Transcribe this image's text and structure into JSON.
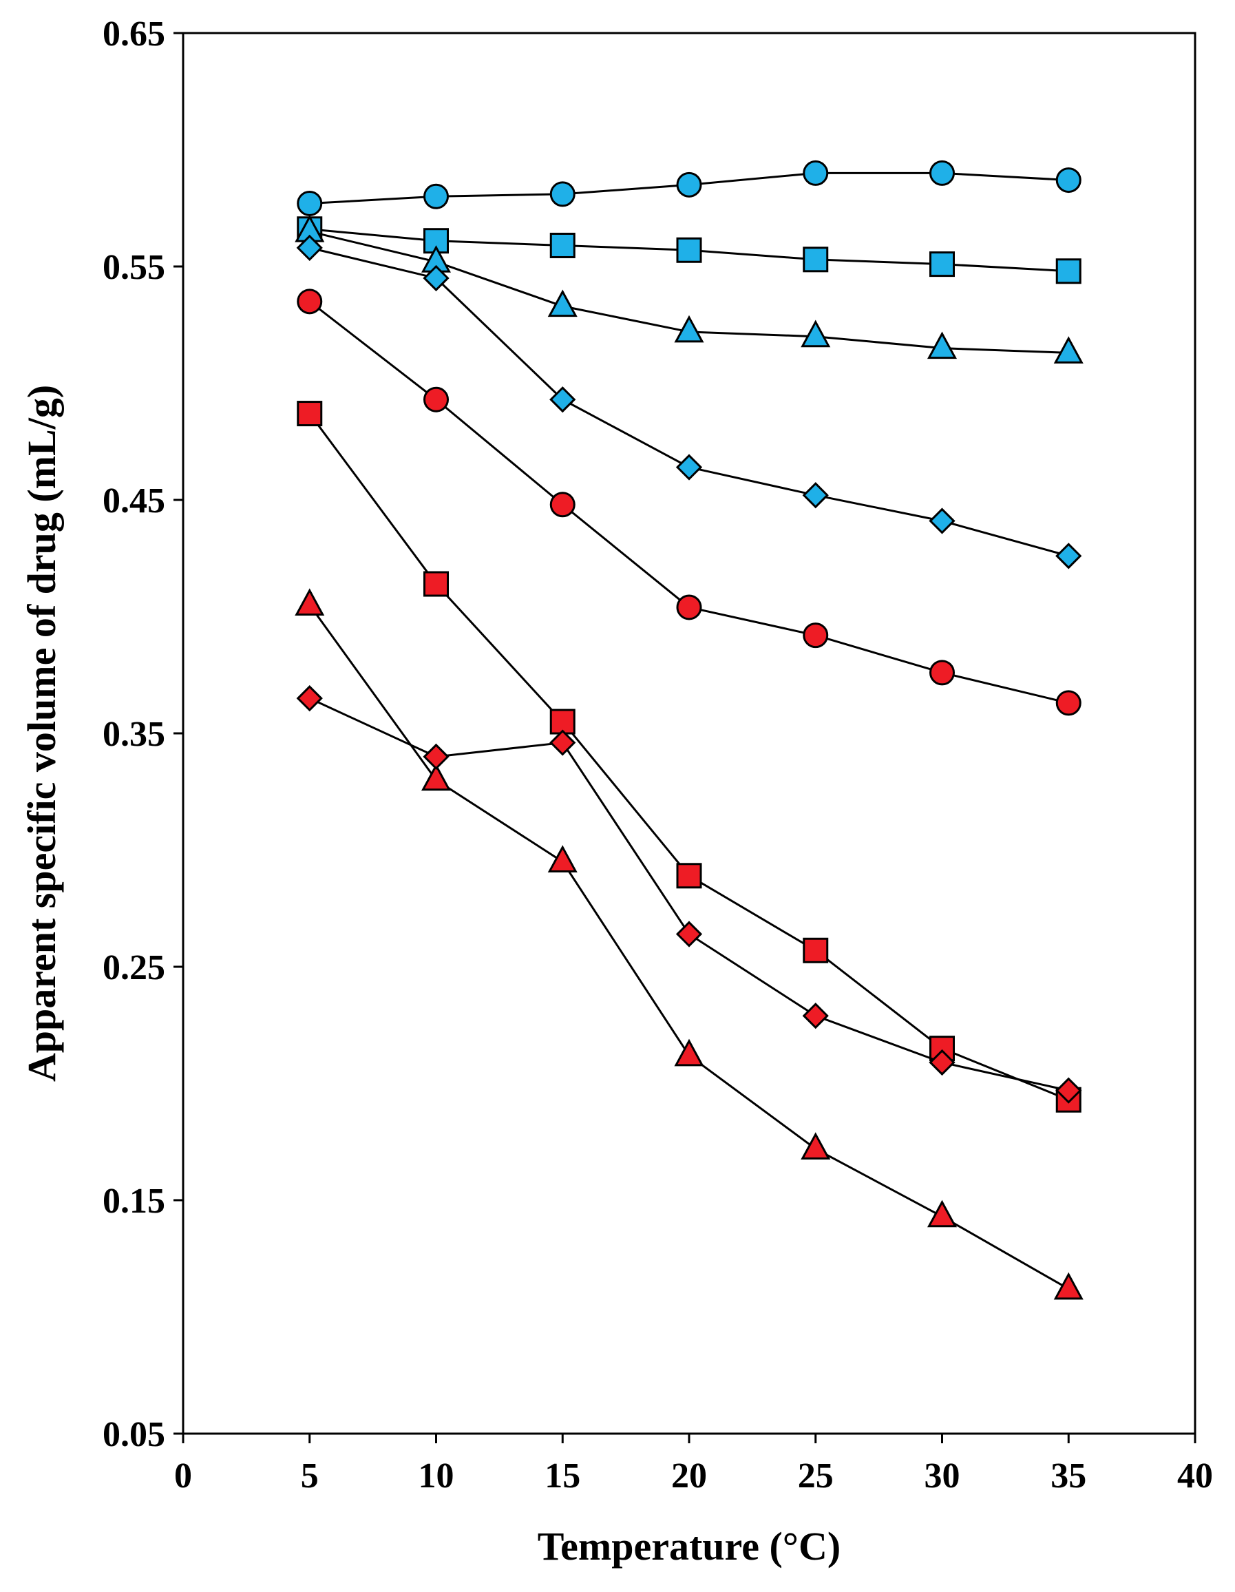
{
  "chart_data": {
    "type": "line",
    "title": "",
    "xlabel": "Temperature (°C)",
    "ylabel": "Apparent specific volume of drug (mL/g)",
    "xlim": [
      0,
      40
    ],
    "ylim": [
      0.05,
      0.65
    ],
    "xticks": [
      "0",
      "5",
      "10",
      "15",
      "20",
      "25",
      "30",
      "35",
      "40"
    ],
    "yticks": [
      "0.05",
      "0.15",
      "0.25",
      "0.35",
      "0.45",
      "0.55",
      "0.65"
    ],
    "x": [
      5,
      10,
      15,
      20,
      25,
      30,
      35
    ],
    "grid": false,
    "legend": "none",
    "series": [
      {
        "name": "blue circles",
        "color": "#1fb0e8",
        "marker": "circle",
        "values": [
          0.577,
          0.58,
          0.581,
          0.585,
          0.59,
          0.59,
          0.587
        ]
      },
      {
        "name": "blue squares",
        "color": "#1fb0e8",
        "marker": "square",
        "values": [
          0.566,
          0.561,
          0.559,
          0.557,
          0.553,
          0.551,
          0.548
        ]
      },
      {
        "name": "blue triangles",
        "color": "#1fb0e8",
        "marker": "triangle",
        "values": [
          0.565,
          0.552,
          0.533,
          0.522,
          0.52,
          0.515,
          0.513
        ]
      },
      {
        "name": "blue diamonds",
        "color": "#1fb0e8",
        "marker": "diamond",
        "values": [
          0.558,
          0.545,
          0.493,
          0.464,
          0.452,
          0.441,
          0.426
        ]
      },
      {
        "name": "red circles",
        "color": "#ee1c25",
        "marker": "circle",
        "values": [
          0.535,
          0.493,
          0.448,
          0.404,
          0.392,
          0.376,
          0.363
        ]
      },
      {
        "name": "red squares",
        "color": "#ee1c25",
        "marker": "square",
        "values": [
          0.487,
          0.414,
          0.355,
          0.289,
          0.257,
          0.215,
          0.193
        ]
      },
      {
        "name": "red triangles",
        "color": "#ee1c25",
        "marker": "triangle",
        "values": [
          0.405,
          0.33,
          0.295,
          0.212,
          0.172,
          0.143,
          0.112
        ]
      },
      {
        "name": "red diamonds",
        "color": "#ee1c25",
        "marker": "diamond",
        "values": [
          0.365,
          0.34,
          0.346,
          0.264,
          0.229,
          0.209,
          0.197
        ]
      }
    ]
  }
}
